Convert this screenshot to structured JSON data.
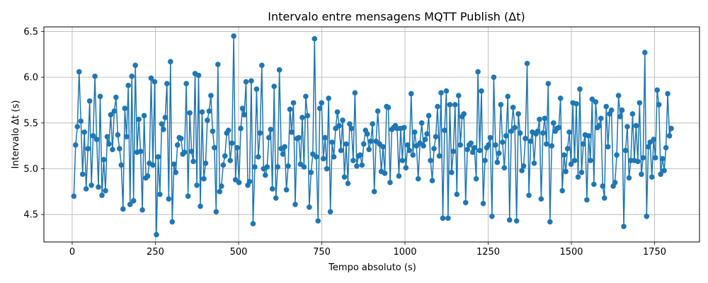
{
  "chart_data": {
    "type": "line",
    "title": "Intervalo entre mensagens MQTT Publish (Δt)",
    "xlabel": "Tempo absoluto (s)",
    "ylabel": "Intervalo Δt (s)",
    "xlim": [
      -85,
      1885
    ],
    "ylim": [
      4.2,
      6.55
    ],
    "xticks": [
      0,
      250,
      500,
      750,
      1000,
      1250,
      1500,
      1750
    ],
    "yticks": [
      4.5,
      5.0,
      5.5,
      6.0,
      6.5
    ],
    "xtick_labels": [
      "0",
      "250",
      "500",
      "750",
      "1000",
      "1250",
      "1500",
      "1750"
    ],
    "ytick_labels": [
      "4.5",
      "5.0",
      "5.5",
      "6.0",
      "6.5"
    ],
    "grid": true,
    "marker": "circle",
    "color": "#1f77b4",
    "y": [
      4.7,
      5.26,
      5.46,
      6.06,
      5.52,
      4.94,
      5.4,
      4.78,
      5.22,
      5.74,
      4.82,
      5.36,
      6.01,
      5.32,
      4.8,
      5.79,
      4.71,
      5.1,
      4.76,
      5.35,
      5.27,
      5.59,
      5.21,
      5.63,
      5.78,
      5.37,
      5.22,
      5.04,
      4.56,
      5.66,
      5.35,
      5.91,
      4.61,
      6.01,
      4.65,
      6.13,
      5.18,
      5.54,
      5.19,
      4.55,
      5.58,
      4.9,
      4.92,
      5.06,
      5.99,
      5.04,
      5.95,
      4.28,
      5.13,
      4.72,
      5.49,
      5.43,
      5.56,
      5.93,
      4.67,
      6.17,
      4.42,
      5.05,
      4.96,
      5.26,
      5.34,
      5.33,
      5.16,
      5.18,
      5.93,
      4.7,
      5.61,
      5.19,
      5.08,
      6.04,
      4.82,
      6.02,
      4.59,
      5.62,
      4.89,
      5.06,
      5.53,
      5.63,
      5.8,
      5.41,
      5.23,
      4.53,
      6.14,
      4.75,
      4.81,
      5.04,
      5.14,
      5.39,
      5.42,
      5.09,
      5.28,
      6.45,
      4.88,
      5.23,
      4.85,
      5.44,
      5.66,
      5.59,
      5.95,
      4.82,
      4.86,
      5.96,
      4.4,
      5.02,
      5.87,
      5.13,
      5.39,
      6.13,
      5.0,
      4.93,
      5.02,
      5.34,
      5.43,
      4.78,
      5.9,
      4.68,
      5.02,
      6.08,
      5.22,
      5.16,
      5.24,
      4.77,
      5.03,
      5.65,
      5.4,
      5.72,
      4.61,
      5.33,
      5.34,
      5.05,
      5.56,
      5.02,
      5.79,
      5.58,
      4.58,
      4.96,
      5.16,
      6.42,
      5.13,
      4.43,
      5.66,
      5.72,
      5.11,
      5.34,
      5.0,
      5.77,
      4.53,
      5.29,
      5.13,
      5.44,
      5.62,
      5.47,
      5.2,
      5.53,
      4.91,
      5.27,
      4.84,
      5.49,
      5.44,
      5.09,
      5.83,
      5.03,
      5.14,
      5.15,
      5.04,
      5.27,
      5.42,
      5.38,
      5.21,
      5.3,
      5.49,
      4.75,
      5.3,
      5.63,
      5.27,
      4.97,
      5.24,
      4.95,
      5.68,
      5.67,
      4.85,
      5.43,
      5.45,
      5.47,
      5.44,
      4.92,
      5.44,
      5.09,
      5.45,
      5.01,
      5.26,
      5.2,
      5.82,
      5.15,
      5.4,
      5.25,
      4.89,
      5.28,
      5.5,
      5.25,
      5.32,
      5.38,
      5.58,
      5.09,
      4.87,
      5.22,
      5.35,
      5.68,
      5.14,
      5.83,
      4.46,
      5.42,
      5.85,
      4.46,
      5.7,
      4.96,
      5.19,
      5.7,
      4.72,
      5.8,
      5.26,
      5.57,
      5.6,
      4.63,
      5.21,
      5.26,
      5.28,
      5.18,
      5.23,
      4.89,
      6.06,
      5.2,
      5.85,
      4.62,
      5.09,
      5.23,
      5.26,
      5.34,
      4.48,
      6.0,
      5.26,
      5.07,
      5.17,
      5.7,
      5.29,
      5.01,
      5.36,
      5.79,
      4.44,
      5.41,
      5.67,
      5.45,
      4.43,
      5.6,
      5.39,
      4.98,
      5.03,
      5.33,
      6.15,
      4.71,
      5.3,
      5.4,
      5.06,
      5.38,
      5.41,
      5.54,
      4.67,
      5.39,
      5.55,
      5.27,
      5.93,
      4.42,
      5.25,
      5.5,
      5.41,
      5.44,
      5.45,
      5.77,
      4.76,
      5.15,
      4.97,
      5.22,
      5.4,
      5.05,
      5.72,
      5.09,
      5.71,
      4.91,
      5.87,
      4.96,
      5.27,
      5.37,
      4.66,
      5.36,
      5.09,
      5.76,
      4.83,
      5.73,
      5.45,
      5.47,
      5.55,
      4.81,
      4.68,
      5.68,
      5.24,
      5.6,
      5.64,
      4.81,
      4.85,
      5.15,
      5.8,
      5.57,
      5.64,
      4.37,
      5.2,
      5.46,
      4.9,
      5.09,
      5.6,
      5.09,
      5.47,
      5.08,
      5.72,
      4.94,
      5.12,
      6.27,
      4.48,
      5.24,
      5.29,
      4.91,
      5.32,
      5.12,
      5.86,
      5.7,
      4.94,
      5.11,
      4.98,
      5.23,
      5.82,
      5.36,
      5.44
    ]
  }
}
